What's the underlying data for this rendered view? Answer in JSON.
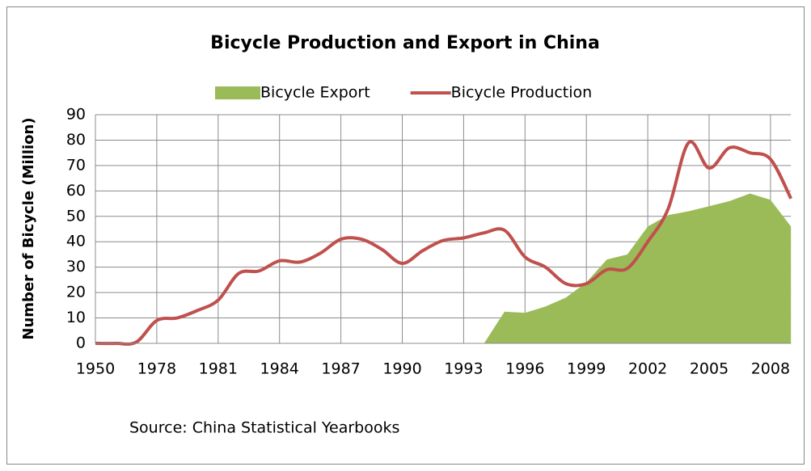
{
  "chart_data": {
    "type": "line",
    "title": "Bicycle Production and Export in China",
    "y_label": "Number of Bicycle (Million)",
    "source": "Source: China Statistical Yearbooks",
    "categories": [
      "1950",
      null,
      null,
      "1978",
      null,
      null,
      "1981",
      null,
      null,
      "1984",
      null,
      null,
      "1987",
      null,
      null,
      "1990",
      null,
      null,
      "1993",
      null,
      null,
      "1996",
      null,
      null,
      "1999",
      null,
      null,
      "2002",
      null,
      null,
      "2005",
      null,
      null,
      "2008",
      null
    ],
    "series": [
      {
        "name": "Bicycle Export",
        "kind": "area",
        "color": "#9bbb59",
        "values": [
          null,
          null,
          null,
          null,
          null,
          null,
          null,
          null,
          null,
          null,
          null,
          null,
          null,
          null,
          null,
          null,
          null,
          null,
          null,
          0,
          12.5,
          12,
          14.5,
          18,
          24,
          33,
          35,
          46,
          50.5,
          52,
          54,
          56,
          59,
          56.5,
          46
        ]
      },
      {
        "name": "Bicycle Production",
        "kind": "line",
        "color": "#c0504d",
        "values": [
          0,
          0,
          0.5,
          9,
          10,
          13,
          17,
          27.5,
          28.5,
          32.5,
          32,
          35.5,
          41,
          41,
          37,
          31.5,
          36.5,
          40.5,
          41.5,
          43.5,
          44.5,
          34,
          30,
          23.5,
          23.5,
          29,
          29.5,
          40,
          53,
          79,
          69,
          77,
          75,
          72.5,
          57
        ]
      }
    ],
    "ylim": [
      0,
      90
    ],
    "yticks": [
      0,
      10,
      20,
      30,
      40,
      50,
      60,
      70,
      80,
      90
    ],
    "grid": true,
    "legend": "top"
  }
}
